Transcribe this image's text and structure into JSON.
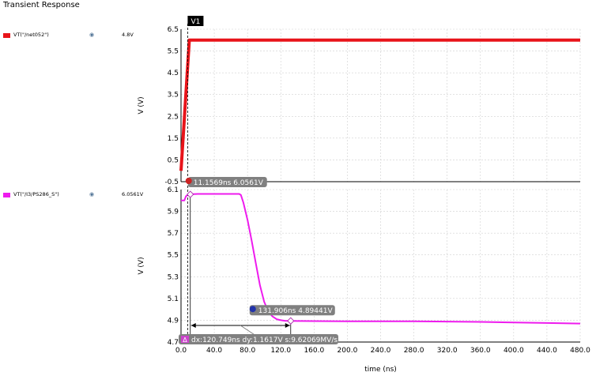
{
  "window": {
    "title": "Transient Response"
  },
  "colors": {
    "top_trace": "#e8141a",
    "bottom_trace": "#ee1bee",
    "grid": "#d0d0d0",
    "marker_bg": "#808080",
    "delta_bg": "#cc44cc"
  },
  "icons": {
    "legend_visibility": "eye-icon"
  },
  "chart_data": [
    {
      "type": "line",
      "ylabel": "V (V)",
      "xlim": [
        0,
        480
      ],
      "ylim": [
        -0.5,
        6.5
      ],
      "yticks": [
        "6.5",
        "5.5",
        "4.5",
        "3.5",
        "2.5",
        "1.5",
        "0.5",
        "-0.5"
      ],
      "ytick_values": [
        6.5,
        5.5,
        4.5,
        3.5,
        2.5,
        1.5,
        0.5,
        -0.5
      ],
      "grid": true,
      "series": [
        {
          "name": "VT(\"/net052\")",
          "value_label": "4.8V",
          "x": [
            0,
            10,
            480
          ],
          "y": [
            0,
            6.0,
            6.0
          ]
        }
      ],
      "vertical_marker": {
        "label": "V1",
        "x": 8
      }
    },
    {
      "type": "line",
      "ylabel": "V (V)",
      "xlabel": "time (ns)",
      "xlim": [
        0,
        480
      ],
      "ylim": [
        4.7,
        6.1
      ],
      "yticks": [
        "6.1",
        "5.9",
        "5.7",
        "5.5",
        "5.3",
        "5.1",
        "4.9",
        "4.7"
      ],
      "ytick_values": [
        6.1,
        5.9,
        5.7,
        5.5,
        5.3,
        5.1,
        4.9,
        4.7
      ],
      "xticks": [
        "0.0",
        "40.0",
        "80.0",
        "120.0",
        "160.0",
        "200.0",
        "240.0",
        "280.0",
        "320.0",
        "360.0",
        "400.0",
        "440.0",
        "480.0"
      ],
      "xtick_values": [
        0,
        40,
        80,
        120,
        160,
        200,
        240,
        280,
        320,
        360,
        400,
        440,
        480
      ],
      "grid": true,
      "series": [
        {
          "name": "VT(\"/I3/PS286_S\")",
          "value_label": "6.0561V",
          "x": [
            0,
            4,
            6,
            8,
            10,
            12,
            15,
            20,
            40,
            70,
            72,
            75,
            80,
            85,
            90,
            95,
            100,
            105,
            110,
            115,
            120,
            125,
            131.9,
            140,
            160,
            200,
            280,
            360,
            440,
            480
          ],
          "y": [
            6.0,
            6.0,
            6.04,
            6.05,
            6.055,
            6.056,
            6.058,
            6.06,
            6.06,
            6.06,
            6.05,
            5.98,
            5.82,
            5.63,
            5.42,
            5.22,
            5.07,
            4.98,
            4.935,
            4.91,
            4.9,
            4.895,
            4.894,
            4.893,
            4.892,
            4.891,
            4.89,
            4.885,
            4.875,
            4.87
          ]
        }
      ],
      "markers": [
        {
          "id": "a",
          "label": "11.1569ns 6.0561V",
          "x": 11.1569,
          "y": 6.0561
        },
        {
          "id": "b",
          "label": "131.906ns 4.89441V",
          "x": 131.906,
          "y": 4.89441
        }
      ],
      "delta": {
        "label": "dx:120.749ns dy:1.1617V s:9.62069MV/s"
      }
    }
  ]
}
